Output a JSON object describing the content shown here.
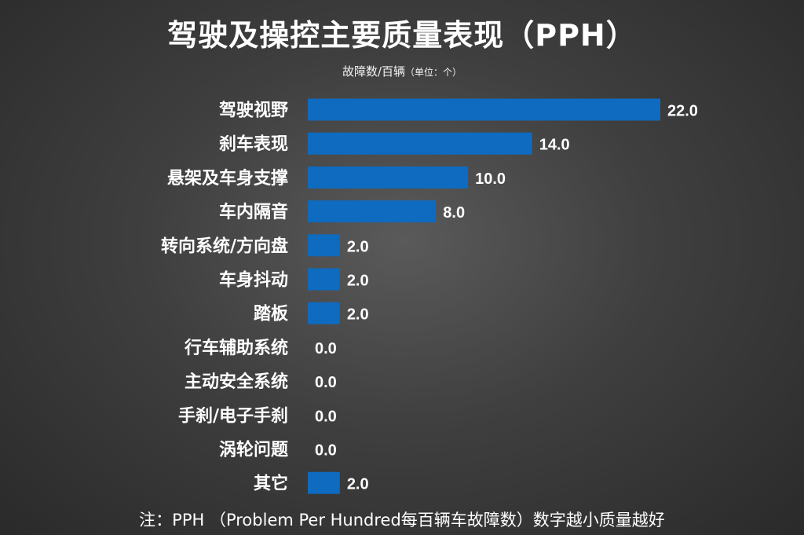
{
  "chart_data": {
    "type": "bar",
    "orientation": "horizontal",
    "title": "驾驶及操控主要质量表现（PPH）",
    "unit_label": "故障数/百辆",
    "unit_note": "（单位：个）",
    "categories": [
      "驾驶视野",
      "刹车表现",
      "悬架及车身支撑",
      "车内隔音",
      "转向系统/方向盘",
      "车身抖动",
      "踏板",
      "行车辅助系统",
      "主动安全系统",
      "手刹/电子手刹",
      "涡轮问题",
      "其它"
    ],
    "values": [
      22.0,
      14.0,
      10.0,
      8.0,
      2.0,
      2.0,
      2.0,
      0.0,
      0.0,
      0.0,
      0.0,
      2.0
    ],
    "value_labels": [
      "22.0",
      "14.0",
      "10.0",
      "8.0",
      "2.0",
      "2.0",
      "2.0",
      "0.0",
      "0.0",
      "0.0",
      "0.0",
      "2.0"
    ],
    "bar_color": "#0e6bbf",
    "xlim": [
      0,
      22
    ],
    "grid": false,
    "legend": "none"
  },
  "footnote": "注：PPH （Problem Per Hundred每百辆车故障数）数字越小质量越好",
  "colors": {
    "background": "#3f3f3f",
    "text": "#ffffff",
    "bar": "#0e6bbf"
  }
}
